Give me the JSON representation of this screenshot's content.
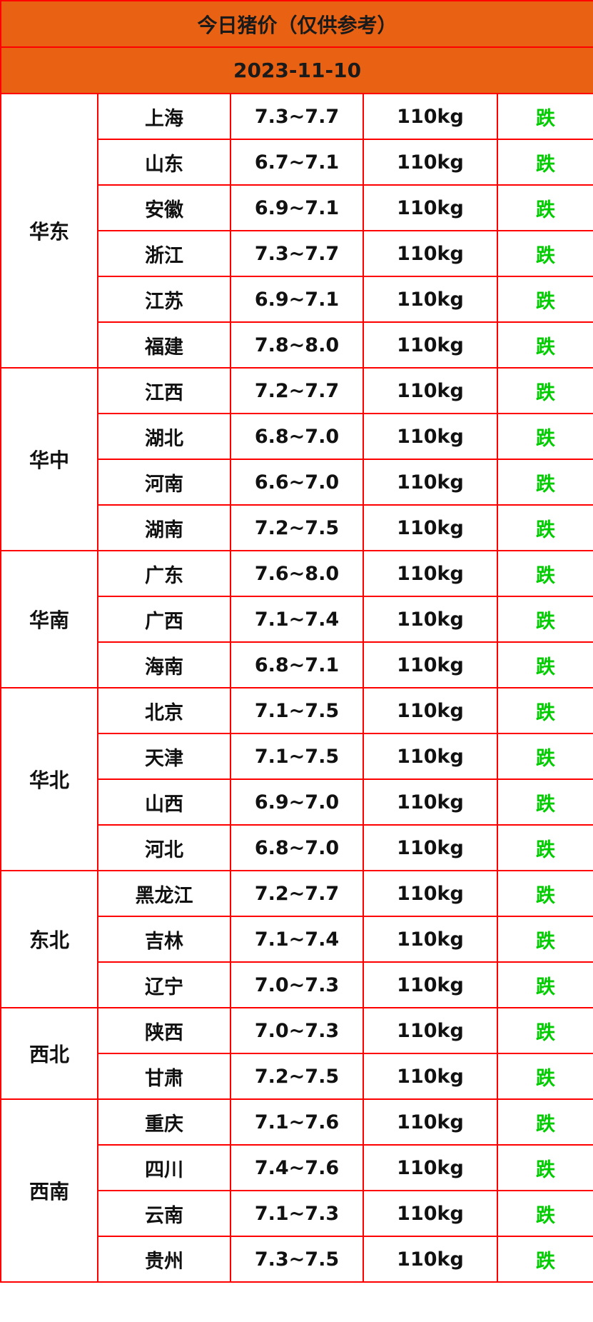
{
  "title": "今日猪价（仅供参考）",
  "date": "2023-11-10",
  "colors": {
    "header_bg": "#e96214",
    "border": "#ff0000",
    "trend": "#00cc00"
  },
  "groups": [
    {
      "region": "华东",
      "rows": [
        {
          "province": "上海",
          "price": "7.3~7.7",
          "weight": "110kg",
          "trend": "跌"
        },
        {
          "province": "山东",
          "price": "6.7~7.1",
          "weight": "110kg",
          "trend": "跌"
        },
        {
          "province": "安徽",
          "price": "6.9~7.1",
          "weight": "110kg",
          "trend": "跌"
        },
        {
          "province": "浙江",
          "price": "7.3~7.7",
          "weight": "110kg",
          "trend": "跌"
        },
        {
          "province": "江苏",
          "price": "6.9~7.1",
          "weight": "110kg",
          "trend": "跌"
        },
        {
          "province": "福建",
          "price": "7.8~8.0",
          "weight": "110kg",
          "trend": "跌"
        }
      ]
    },
    {
      "region": "华中",
      "rows": [
        {
          "province": "江西",
          "price": "7.2~7.7",
          "weight": "110kg",
          "trend": "跌"
        },
        {
          "province": "湖北",
          "price": "6.8~7.0",
          "weight": "110kg",
          "trend": "跌"
        },
        {
          "province": "河南",
          "price": "6.6~7.0",
          "weight": "110kg",
          "trend": "跌"
        },
        {
          "province": "湖南",
          "price": "7.2~7.5",
          "weight": "110kg",
          "trend": "跌"
        }
      ]
    },
    {
      "region": "华南",
      "rows": [
        {
          "province": "广东",
          "price": "7.6~8.0",
          "weight": "110kg",
          "trend": "跌"
        },
        {
          "province": "广西",
          "price": "7.1~7.4",
          "weight": "110kg",
          "trend": "跌"
        },
        {
          "province": "海南",
          "price": "6.8~7.1",
          "weight": "110kg",
          "trend": "跌"
        }
      ]
    },
    {
      "region": "华北",
      "rows": [
        {
          "province": "北京",
          "price": "7.1~7.5",
          "weight": "110kg",
          "trend": "跌"
        },
        {
          "province": "天津",
          "price": "7.1~7.5",
          "weight": "110kg",
          "trend": "跌"
        },
        {
          "province": "山西",
          "price": "6.9~7.0",
          "weight": "110kg",
          "trend": "跌"
        },
        {
          "province": "河北",
          "price": "6.8~7.0",
          "weight": "110kg",
          "trend": "跌"
        }
      ]
    },
    {
      "region": "东北",
      "rows": [
        {
          "province": "黑龙江",
          "price": "7.2~7.7",
          "weight": "110kg",
          "trend": "跌"
        },
        {
          "province": "吉林",
          "price": "7.1~7.4",
          "weight": "110kg",
          "trend": "跌"
        },
        {
          "province": "辽宁",
          "price": "7.0~7.3",
          "weight": "110kg",
          "trend": "跌"
        }
      ]
    },
    {
      "region": "西北",
      "rows": [
        {
          "province": "陕西",
          "price": "7.0~7.3",
          "weight": "110kg",
          "trend": "跌"
        },
        {
          "province": "甘肃",
          "price": "7.2~7.5",
          "weight": "110kg",
          "trend": "跌"
        }
      ]
    },
    {
      "region": "西南",
      "rows": [
        {
          "province": "重庆",
          "price": "7.1~7.6",
          "weight": "110kg",
          "trend": "跌"
        },
        {
          "province": "四川",
          "price": "7.4~7.6",
          "weight": "110kg",
          "trend": "跌"
        },
        {
          "province": "云南",
          "price": "7.1~7.3",
          "weight": "110kg",
          "trend": "跌"
        },
        {
          "province": "贵州",
          "price": "7.3~7.5",
          "weight": "110kg",
          "trend": "跌"
        }
      ]
    }
  ]
}
